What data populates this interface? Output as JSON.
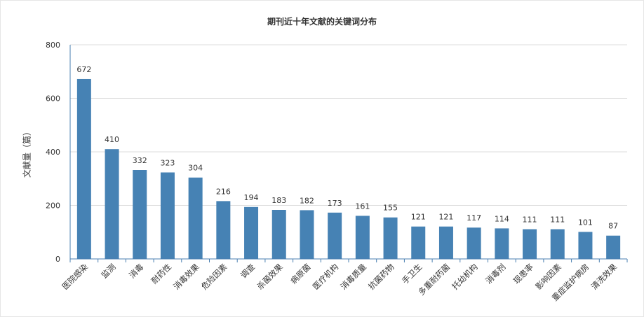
{
  "chart_data": {
    "type": "bar",
    "title": "期刊近十年文献的关键词分布",
    "xlabel": "",
    "ylabel": "文献量（篇）",
    "ylim": [
      0,
      800
    ],
    "yticks": [
      0,
      200,
      400,
      600,
      800
    ],
    "grid": true,
    "categories": [
      "医院感染",
      "监测",
      "消毒",
      "耐药性",
      "消毒效果",
      "危险因素",
      "调查",
      "杀菌效果",
      "病原菌",
      "医疗机构",
      "消毒质量",
      "抗菌药物",
      "手卫生",
      "多重耐药菌",
      "托幼机构",
      "消毒剂",
      "现患率",
      "影响因素",
      "重症监护病房",
      "清洗效果"
    ],
    "values": [
      672,
      410,
      332,
      323,
      304,
      216,
      194,
      183,
      182,
      173,
      161,
      155,
      121,
      121,
      117,
      114,
      111,
      111,
      101,
      87
    ],
    "bar_color": "#4682b4"
  }
}
